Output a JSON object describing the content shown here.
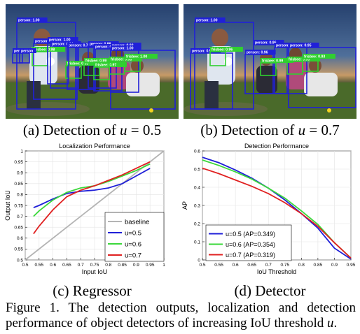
{
  "photos": {
    "a": {
      "caption_prefix": "(a) Detection of ",
      "caption_var": "u",
      "caption_rest": " = 0.5",
      "logo_text": "",
      "labels": [
        "person: 1.00",
        "person: 0.56",
        "person: 0.64",
        "person: 0.70",
        "person: 0.99",
        "person: 0.98",
        "person: 0.93",
        "person: 1.00",
        "frisbee: 0.98",
        "frisbee: 0.93",
        "frisbee: 0.99",
        "frisbee: 0.97",
        "frisbee: 0.98",
        "frisbee: 1.00",
        "persol",
        "person",
        "person: 1.00"
      ]
    },
    "b": {
      "caption_prefix": "(b) Detection of ",
      "caption_var": "u",
      "caption_rest": " = 0.7",
      "labels": [
        "person: 1.00",
        "person: 0.55",
        "person: 0.96",
        "person: 0.94",
        "person: 0.95",
        "person: 0.96",
        "frisbee: 0.96",
        "frisbee: 0.99",
        "frisbee: 0.95",
        "frisbee: 0.93"
      ]
    }
  },
  "charts": {
    "c": {
      "caption": "(c) Regressor"
    },
    "d": {
      "caption": "(d) Detector"
    }
  },
  "figure_caption": {
    "text_1": "Figure 1. The detection outputs, localization and detection performance of object detectors of increasing IoU threshold ",
    "var": "u",
    "text_2": "."
  },
  "chart_data": [
    {
      "type": "line",
      "title": "Localization Performance",
      "xlabel": "Input IoU",
      "ylabel": "Output IoU",
      "xlim": [
        0.5,
        1
      ],
      "ylim": [
        0.5,
        1
      ],
      "xticks": [
        0.5,
        0.55,
        0.6,
        0.65,
        0.7,
        0.75,
        0.8,
        0.85,
        0.9,
        0.95,
        1
      ],
      "yticks": [
        0.5,
        0.55,
        0.6,
        0.65,
        0.7,
        0.75,
        0.8,
        0.85,
        0.9,
        0.95,
        1
      ],
      "tick_labels_x": [
        "0.5",
        "0.55",
        "0.6",
        "0.65",
        "0.7",
        "0.75",
        "0.8",
        "0.85",
        "0.9",
        "0.95",
        "1"
      ],
      "tick_labels_y": [
        "0.5",
        "0.55",
        "0.6",
        "0.65",
        "0.7",
        "0.75",
        "0.8",
        "0.85",
        "0.9",
        "0.95",
        "1"
      ],
      "legend_position": "bottom-right",
      "series": [
        {
          "name": "baseline",
          "color": "#b4b4b4",
          "x": [
            0.5,
            1
          ],
          "y": [
            0.5,
            1
          ]
        },
        {
          "name": "u=0.5",
          "color": "#1f1fd8",
          "x": [
            0.53,
            0.55,
            0.6,
            0.65,
            0.7,
            0.75,
            0.8,
            0.85,
            0.9,
            0.95
          ],
          "y": [
            0.74,
            0.75,
            0.78,
            0.805,
            0.815,
            0.82,
            0.83,
            0.85,
            0.885,
            0.92
          ]
        },
        {
          "name": "u=0.6",
          "color": "#3ad83a",
          "x": [
            0.53,
            0.55,
            0.6,
            0.65,
            0.7,
            0.75,
            0.8,
            0.85,
            0.9,
            0.95
          ],
          "y": [
            0.7,
            0.725,
            0.775,
            0.81,
            0.83,
            0.84,
            0.86,
            0.885,
            0.91,
            0.94
          ]
        },
        {
          "name": "u=0.7",
          "color": "#e02020",
          "x": [
            0.53,
            0.55,
            0.6,
            0.65,
            0.7,
            0.75,
            0.8,
            0.85,
            0.9,
            0.95
          ],
          "y": [
            0.62,
            0.655,
            0.73,
            0.79,
            0.82,
            0.84,
            0.865,
            0.89,
            0.92,
            0.95
          ]
        }
      ],
      "grid": true
    },
    {
      "type": "line",
      "title": "Detection Performance",
      "xlabel": "IoU Threshold",
      "ylabel": "AP",
      "xlim": [
        0.5,
        0.95
      ],
      "ylim": [
        0,
        0.6
      ],
      "xticks": [
        0.5,
        0.55,
        0.6,
        0.65,
        0.7,
        0.75,
        0.8,
        0.85,
        0.9,
        0.95
      ],
      "yticks": [
        0,
        0.1,
        0.2,
        0.3,
        0.4,
        0.5,
        0.6
      ],
      "tick_labels_x": [
        "0.5",
        "0.55",
        "0.6",
        "0.65",
        "0.7",
        "0.75",
        "0.8",
        "0.85",
        "0.9",
        "0.95"
      ],
      "tick_labels_y": [
        "0",
        "0.1",
        "0.2",
        "0.3",
        "0.4",
        "0.5",
        "0.6"
      ],
      "legend_position": "bottom-left",
      "series": [
        {
          "name": "u=0.5 (AP=0.349)",
          "color": "#1f1fd8",
          "x": [
            0.5,
            0.55,
            0.6,
            0.65,
            0.7,
            0.75,
            0.8,
            0.85,
            0.9,
            0.95
          ],
          "y": [
            0.565,
            0.535,
            0.495,
            0.45,
            0.395,
            0.33,
            0.255,
            0.175,
            0.065,
            0.005
          ]
        },
        {
          "name": "u=0.6 (AP=0.354)",
          "color": "#3ad83a",
          "x": [
            0.5,
            0.55,
            0.6,
            0.65,
            0.7,
            0.75,
            0.8,
            0.85,
            0.9,
            0.95
          ],
          "y": [
            0.55,
            0.52,
            0.485,
            0.445,
            0.395,
            0.34,
            0.27,
            0.195,
            0.095,
            0.01
          ]
        },
        {
          "name": "u=0.7 (AP=0.319)",
          "color": "#e02020",
          "x": [
            0.5,
            0.55,
            0.6,
            0.65,
            0.7,
            0.75,
            0.8,
            0.85,
            0.9,
            0.95
          ],
          "y": [
            0.505,
            0.475,
            0.44,
            0.405,
            0.365,
            0.315,
            0.255,
            0.185,
            0.095,
            0.01
          ]
        }
      ],
      "grid": true
    }
  ]
}
